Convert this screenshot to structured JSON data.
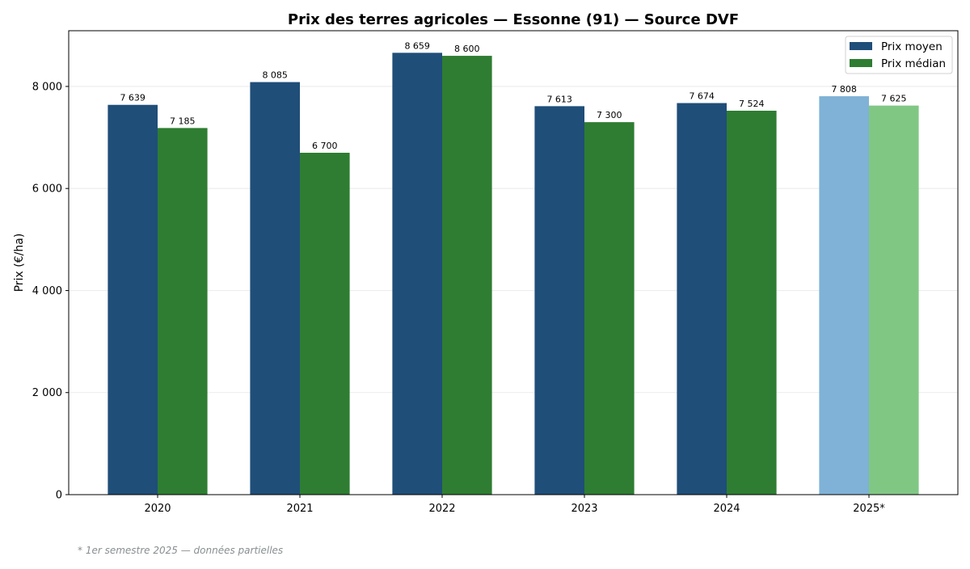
{
  "chart_data": {
    "type": "bar",
    "title": "Prix des terres agricoles — Essonne (91) — Source DVF",
    "xlabel": "",
    "ylabel": "Prix (€/ha)",
    "categories": [
      "2020",
      "2021",
      "2022",
      "2023",
      "2024",
      "2025*"
    ],
    "series": [
      {
        "name": "Prix moyen",
        "values": [
          7639,
          8085,
          8659,
          7613,
          7674,
          7808
        ],
        "labels": [
          "7 639",
          "8 085",
          "8 659",
          "7 613",
          "7 674",
          "7 808"
        ],
        "color": "#1f4e79",
        "partial_color": "#7fb2d6"
      },
      {
        "name": "Prix médian",
        "values": [
          7185,
          6700,
          8600,
          7300,
          7524,
          7625
        ],
        "labels": [
          "7 185",
          "6 700",
          "8 600",
          "7 300",
          "7 524",
          "7 625"
        ],
        "color": "#2e7d32",
        "partial_color": "#81c784"
      }
    ],
    "partial_categories": [
      "2025*"
    ],
    "ylim": [
      0,
      9092
    ],
    "yticks": [
      0,
      2000,
      4000,
      6000,
      8000
    ],
    "ytick_labels": [
      "0",
      "2 000",
      "4 000",
      "6 000",
      "8 000"
    ],
    "grid": "horizontal",
    "legend": "top-right"
  },
  "footnote": "* 1er semestre 2025 — données partielles"
}
